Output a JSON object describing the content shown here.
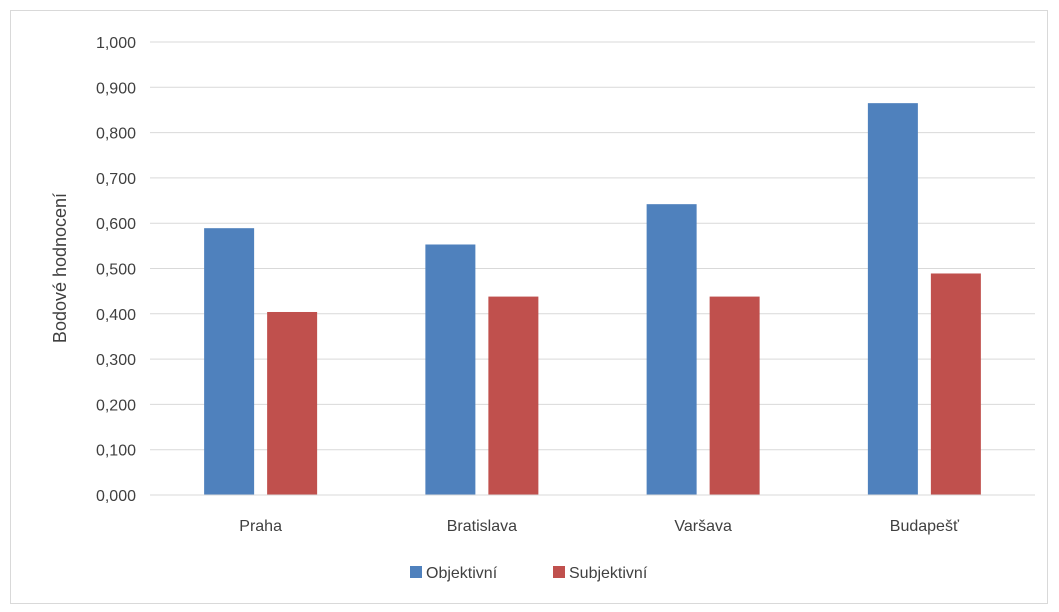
{
  "chart_data": {
    "type": "bar",
    "title": "",
    "xlabel": "",
    "ylabel": "Bodové hodnocení",
    "ylim": [
      0,
      1
    ],
    "yticks": [
      "0,000",
      "0,100",
      "0,200",
      "0,300",
      "0,400",
      "0,500",
      "0,600",
      "0,700",
      "0,800",
      "0,900",
      "1,000"
    ],
    "categories": [
      "Praha",
      "Bratislava",
      "Varšava",
      "Budapešť"
    ],
    "series": [
      {
        "name": "Objektivní",
        "color": "#4f81bd",
        "values": [
          0.589,
          0.553,
          0.642,
          0.865
        ]
      },
      {
        "name": "Subjektivní",
        "color": "#c0504d",
        "values": [
          0.404,
          0.438,
          0.438,
          0.489
        ]
      }
    ],
    "grid": true,
    "legend_position": "bottom"
  }
}
